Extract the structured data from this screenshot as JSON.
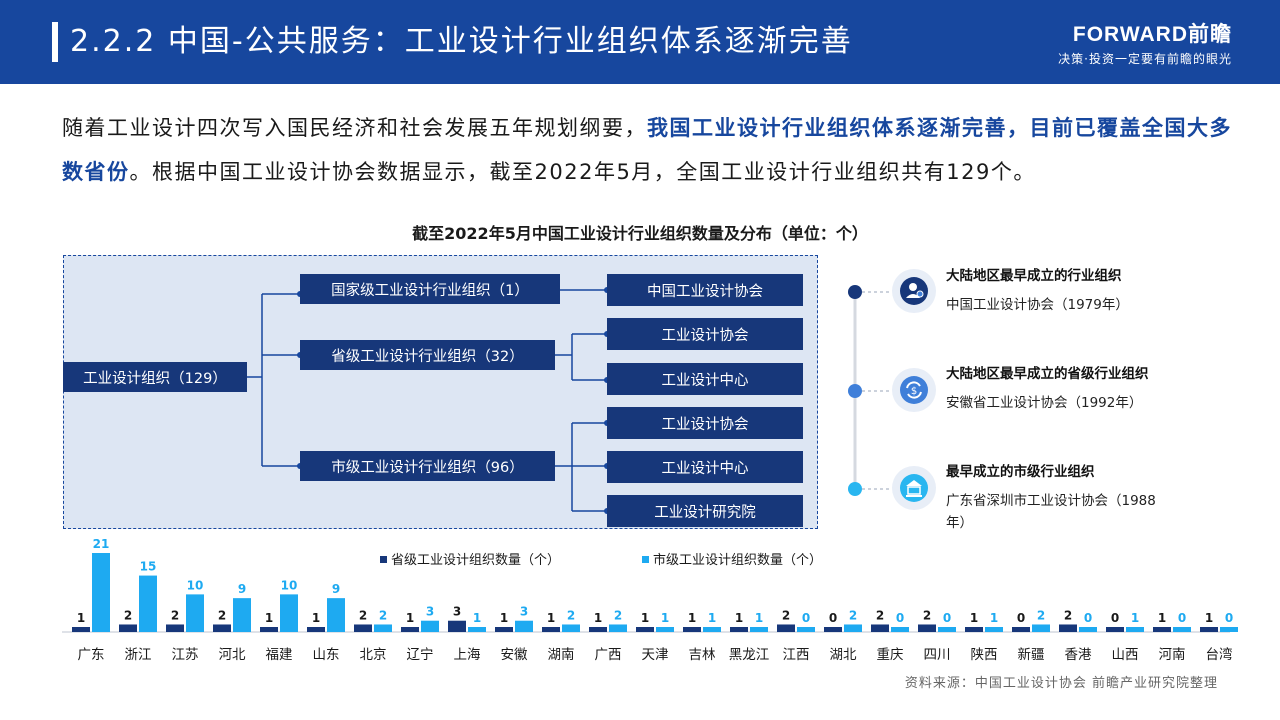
{
  "header": {
    "title": "2.2.2 中国-公共服务：工业设计行业组织体系逐渐完善",
    "brand_logo": "FORWARD前瞻",
    "brand_slogan": "决策·投资一定要有前瞻的眼光"
  },
  "intro": {
    "part1": "随着工业设计四次写入国民经济和社会发展五年规划纲要，",
    "highlight": "我国工业设计行业组织体系逐渐完善，目前已覆盖全国大多数省份",
    "part2": "。根据中国工业设计协会数据显示，截至2022年5月，全国工业设计行业组织共有129个。"
  },
  "diagram": {
    "title": "截至2022年5月中国工业设计行业组织数量及分布（单位：个）",
    "root": "工业设计组织（129）",
    "level1": [
      {
        "label": "国家级工业设计行业组织（1）",
        "children": [
          "中国工业设计协会"
        ]
      },
      {
        "label": "省级工业设计行业组织（32）",
        "children": [
          "工业设计协会",
          "工业设计中心"
        ]
      },
      {
        "label": "市级工业设计行业组织（96）",
        "children": [
          "工业设计协会",
          "工业设计中心",
          "工业设计研究院"
        ]
      }
    ]
  },
  "timeline": [
    {
      "title": "大陆地区最早成立的行业组织",
      "desc": "中国工业设计协会（1979年）",
      "icon": "person-badge-icon",
      "color": "#17377a"
    },
    {
      "title": "大陆地区最早成立的省级行业组织",
      "desc": "安徽省工业设计协会（1992年）",
      "icon": "exchange-icon",
      "color": "#3f7fd9"
    },
    {
      "title": "最早成立的市级行业组织",
      "desc": "广东省深圳市工业设计协会（1988年）",
      "icon": "bank-icon",
      "color": "#29b6f0"
    }
  ],
  "chart_data": {
    "type": "bar",
    "categories": [
      "广东",
      "浙江",
      "江苏",
      "河北",
      "福建",
      "山东",
      "北京",
      "辽宁",
      "上海",
      "安徽",
      "湖南",
      "广西",
      "天津",
      "吉林",
      "黑龙江",
      "江西",
      "湖北",
      "重庆",
      "四川",
      "陕西",
      "新疆",
      "香港",
      "山西",
      "河南",
      "台湾"
    ],
    "series": [
      {
        "name": "省级工业设计组织数量（个）",
        "color": "#17377a",
        "values": [
          1,
          2,
          2,
          2,
          1,
          1,
          2,
          1,
          3,
          1,
          1,
          1,
          1,
          1,
          1,
          2,
          0,
          2,
          2,
          1,
          0,
          2,
          0,
          1,
          1
        ]
      },
      {
        "name": "市级工业设计组织数量（个）",
        "color": "#1eaaf1",
        "values": [
          21,
          15,
          10,
          9,
          10,
          9,
          2,
          3,
          1,
          3,
          2,
          2,
          1,
          1,
          1,
          0,
          2,
          0,
          0,
          1,
          2,
          0,
          1,
          0,
          0
        ]
      }
    ],
    "legend_position": "top-center",
    "grid": false
  },
  "source": "资料来源：中国工业设计协会 前瞻产业研究院整理"
}
